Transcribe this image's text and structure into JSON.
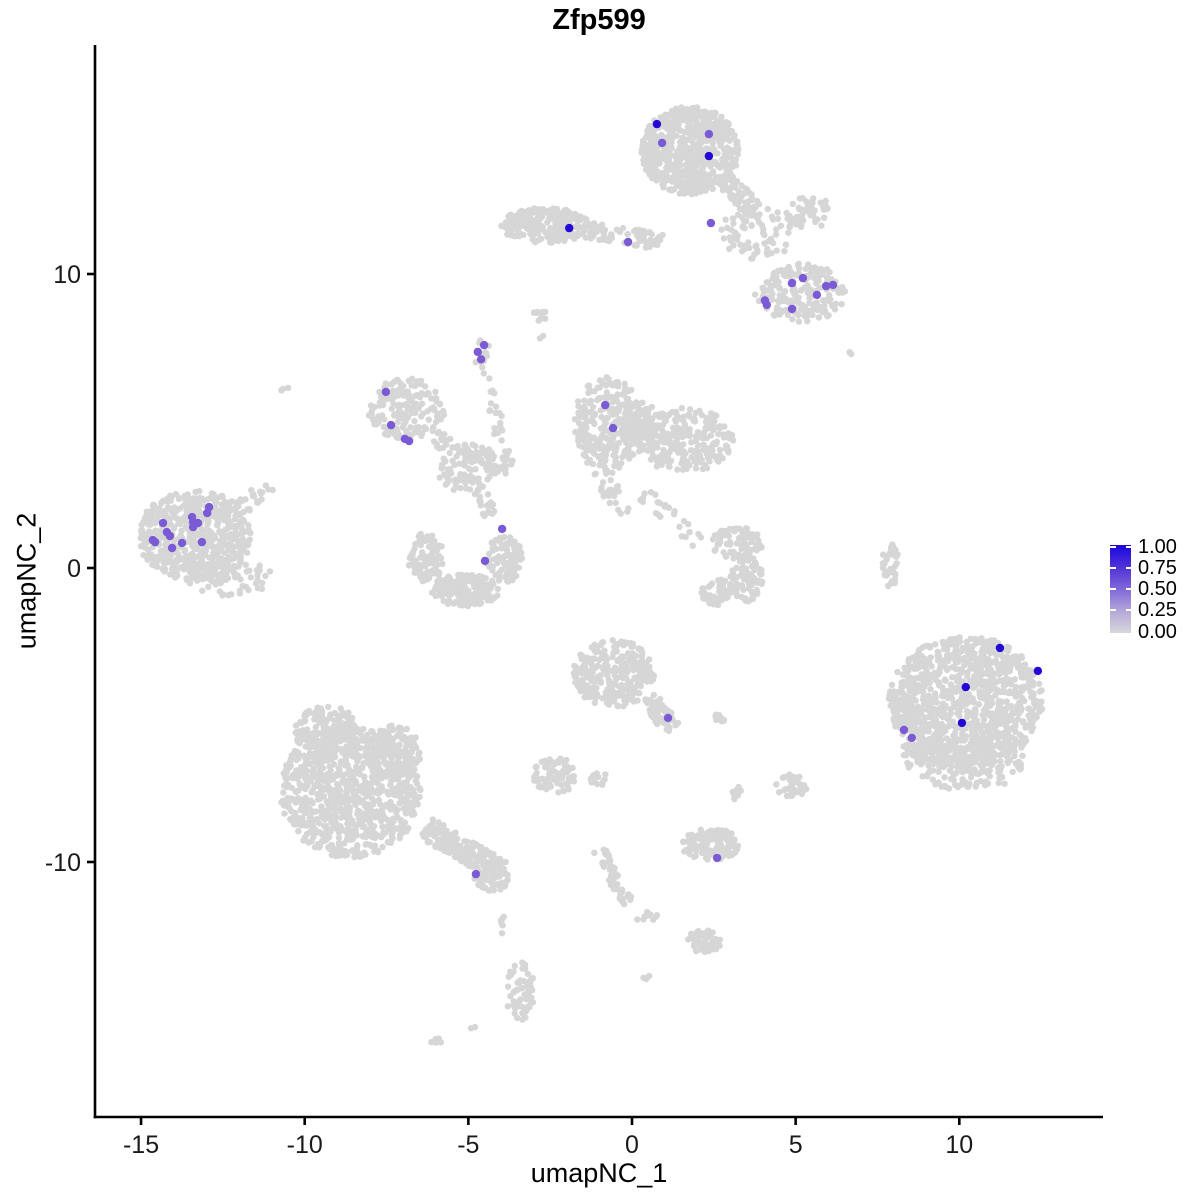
{
  "figure": {
    "title": "Zfp599"
  },
  "chart_data": {
    "type": "scatter",
    "title": "Zfp599",
    "xlabel": "umapNC_1",
    "ylabel": "umapNC_2",
    "xlim": [
      -16.4,
      14.4
    ],
    "ylim": [
      -18.7,
      17.8
    ],
    "x_ticks": [
      "-15",
      "-10",
      "-5",
      "0",
      "5",
      "10"
    ],
    "x_tick_values": [
      -15,
      -10,
      -5,
      0,
      5,
      10
    ],
    "y_ticks": [
      "-10",
      "0",
      "10"
    ],
    "y_tick_values": [
      -10,
      0,
      10
    ],
    "grid": false,
    "legend": {
      "position": "right",
      "breaks": [
        0.0,
        0.25,
        0.5,
        0.75,
        1.0
      ],
      "labels": [
        "0.00",
        "0.25",
        "0.50",
        "0.75",
        "1.00"
      ],
      "color_low": "#d3d3d3",
      "color_high": "#1a06dc"
    },
    "style": {
      "background_point_color": "#d6d6d6",
      "mid_point_color": "#7a5bd5",
      "high_point_color": "#2408d6",
      "axis_color": "#000000",
      "point_radius": 3.2,
      "highlight_radius": 4.2
    },
    "clusters": [
      {
        "name": "top-main",
        "type": "blob",
        "c": [
          1.77,
          14.2
        ],
        "r": [
          1.5,
          1.5
        ],
        "n": 620
      },
      {
        "name": "top-tail",
        "type": "trail",
        "a": [
          2.7,
          13.35
        ],
        "b": [
          3.8,
          12.1
        ],
        "w": 0.3,
        "n": 80
      },
      {
        "name": "top-scatter",
        "type": "blob",
        "c": [
          3.9,
          11.4
        ],
        "r": [
          1.2,
          0.9
        ],
        "n": 80
      },
      {
        "name": "top-arm",
        "type": "blob",
        "c": [
          5.35,
          12.1
        ],
        "r": [
          0.75,
          0.6
        ],
        "n": 50
      },
      {
        "name": "band-dense",
        "type": "blob",
        "c": [
          -2.65,
          11.65
        ],
        "r": [
          1.35,
          0.6
        ],
        "n": 230
      },
      {
        "name": "band-tail",
        "type": "trail",
        "a": [
          -1.4,
          11.5
        ],
        "b": [
          0.9,
          11.1
        ],
        "w": 0.28,
        "n": 70
      },
      {
        "name": "right-mid-top",
        "type": "blob",
        "c": [
          5.15,
          9.35
        ],
        "r": [
          1.4,
          1.0
        ],
        "n": 190
      },
      {
        "name": "ptrail-head",
        "type": "blob",
        "c": [
          -4.58,
          7.3
        ],
        "r": [
          0.25,
          0.5
        ],
        "n": 12
      },
      {
        "name": "ptrail-down",
        "type": "trail",
        "a": [
          -4.5,
          6.8
        ],
        "b": [
          -3.8,
          3.4
        ],
        "w": 0.18,
        "n": 28
      },
      {
        "name": "left-small",
        "type": "blob",
        "c": [
          -6.9,
          5.4
        ],
        "r": [
          1.2,
          1.05
        ],
        "n": 175
      },
      {
        "name": "ls-arm",
        "type": "trail",
        "a": [
          -6.1,
          4.4
        ],
        "b": [
          -3.7,
          3.4
        ],
        "w": 0.3,
        "n": 45
      },
      {
        "name": "central",
        "type": "blob",
        "c": [
          -5.0,
          3.4
        ],
        "r": [
          0.95,
          0.85
        ],
        "n": 100
      },
      {
        "name": "central-tail",
        "type": "trail",
        "a": [
          -4.7,
          2.9
        ],
        "b": [
          -4.35,
          1.8
        ],
        "w": 0.22,
        "n": 22
      },
      {
        "name": "mid-left",
        "type": "blob",
        "c": [
          -0.75,
          4.9
        ],
        "r": [
          1.1,
          1.6
        ],
        "n": 270
      },
      {
        "name": "mid-right",
        "type": "blob",
        "c": [
          1.6,
          4.35
        ],
        "r": [
          1.5,
          1.1
        ],
        "n": 220
      },
      {
        "name": "mid-bridge",
        "type": "blob",
        "c": [
          0.35,
          4.8
        ],
        "r": [
          0.7,
          0.9
        ],
        "n": 70
      },
      {
        "name": "mid-tail1",
        "type": "trail",
        "a": [
          -0.9,
          3.3
        ],
        "b": [
          -0.3,
          1.85
        ],
        "w": 0.3,
        "n": 30
      },
      {
        "name": "mid-tail2",
        "type": "trail",
        "a": [
          0.3,
          2.6
        ],
        "b": [
          2.0,
          0.9
        ],
        "w": 0.25,
        "n": 25
      },
      {
        "name": "left-big",
        "type": "blob",
        "c": [
          -13.35,
          1.1
        ],
        "r": [
          1.75,
          1.55
        ],
        "n": 540
      },
      {
        "name": "lb-arm",
        "type": "trail",
        "a": [
          -12.2,
          1.95
        ],
        "b": [
          -11.0,
          2.75
        ],
        "w": 0.28,
        "n": 28
      },
      {
        "name": "lb-fringe",
        "type": "blob",
        "c": [
          -12.3,
          -0.35
        ],
        "r": [
          1.35,
          0.6
        ],
        "n": 70
      },
      {
        "name": "crescent-a",
        "type": "blob",
        "c": [
          -6.3,
          0.35
        ],
        "r": [
          0.55,
          0.85
        ],
        "n": 90
      },
      {
        "name": "crescent-b",
        "type": "blob",
        "c": [
          -5.1,
          -0.75
        ],
        "r": [
          1.05,
          0.55
        ],
        "n": 165
      },
      {
        "name": "crescent-c",
        "type": "blob",
        "c": [
          -3.9,
          0.3
        ],
        "r": [
          0.55,
          0.8
        ],
        "n": 90
      },
      {
        "name": "rm-crescent-a",
        "type": "blob",
        "c": [
          3.2,
          0.85
        ],
        "r": [
          0.8,
          0.55
        ],
        "n": 80
      },
      {
        "name": "rm-crescent-b",
        "type": "blob",
        "c": [
          3.5,
          -0.35
        ],
        "r": [
          0.5,
          0.8
        ],
        "n": 80
      },
      {
        "name": "rm-crescent-c",
        "type": "blob",
        "c": [
          2.6,
          -0.8
        ],
        "r": [
          0.5,
          0.5
        ],
        "n": 55
      },
      {
        "name": "thin-strip",
        "type": "blob",
        "c": [
          7.9,
          0.15
        ],
        "r": [
          0.25,
          0.8
        ],
        "n": 35
      },
      {
        "name": "right-big",
        "type": "blob",
        "c": [
          10.2,
          -4.55
        ],
        "r": [
          2.35,
          2.25
        ],
        "n": 950
      },
      {
        "name": "rb-arm",
        "type": "trail",
        "a": [
          8.25,
          -4.3
        ],
        "b": [
          8.85,
          -6.7
        ],
        "w": 0.45,
        "n": 100
      },
      {
        "name": "rb-bottom",
        "type": "blob",
        "c": [
          10.3,
          -6.6
        ],
        "r": [
          1.7,
          1.0
        ],
        "n": 170
      },
      {
        "name": "cb-main",
        "type": "blob",
        "c": [
          -0.55,
          -3.6
        ],
        "r": [
          1.25,
          1.15
        ],
        "n": 280
      },
      {
        "name": "cb-arm",
        "type": "trail",
        "a": [
          0.45,
          -4.4
        ],
        "b": [
          1.25,
          -5.5
        ],
        "w": 0.3,
        "n": 60
      },
      {
        "name": "small-1",
        "type": "blob",
        "c": [
          -2.35,
          -7.05
        ],
        "r": [
          0.7,
          0.6
        ],
        "n": 75
      },
      {
        "name": "small-2",
        "type": "blob",
        "c": [
          -1.0,
          -7.2
        ],
        "r": [
          0.27,
          0.27
        ],
        "n": 14
      },
      {
        "name": "small-3",
        "type": "blob",
        "c": [
          2.8,
          -5.1
        ],
        "r": [
          0.3,
          0.18
        ],
        "n": 10
      },
      {
        "name": "small-4",
        "type": "blob",
        "c": [
          3.2,
          -7.7
        ],
        "r": [
          0.2,
          0.28
        ],
        "n": 10
      },
      {
        "name": "small-5",
        "type": "blob",
        "c": [
          4.9,
          -7.4
        ],
        "r": [
          0.5,
          0.4
        ],
        "n": 32
      },
      {
        "name": "bottom-small",
        "type": "blob",
        "c": [
          2.4,
          -9.4
        ],
        "r": [
          0.9,
          0.55
        ],
        "n": 140
      },
      {
        "name": "bl-main",
        "type": "blob",
        "c": [
          -8.6,
          -7.6
        ],
        "r": [
          2.15,
          2.25
        ],
        "n": 850
      },
      {
        "name": "bl-top",
        "type": "blob",
        "c": [
          -9.3,
          -5.55
        ],
        "r": [
          1.05,
          0.85
        ],
        "n": 170
      },
      {
        "name": "bl-right",
        "type": "blob",
        "c": [
          -7.3,
          -6.3
        ],
        "r": [
          0.85,
          0.95
        ],
        "n": 130
      },
      {
        "name": "bl-tail",
        "type": "trail",
        "a": [
          -6.3,
          -8.85
        ],
        "b": [
          -3.95,
          -10.35
        ],
        "w": 0.38,
        "n": 190
      },
      {
        "name": "bl-tailend",
        "type": "blob",
        "c": [
          -4.3,
          -10.6
        ],
        "r": [
          0.55,
          0.4
        ],
        "n": 45
      },
      {
        "name": "bt-trail",
        "type": "trail",
        "a": [
          -1.0,
          -9.6
        ],
        "b": [
          -0.1,
          -11.5
        ],
        "w": 0.2,
        "n": 45
      },
      {
        "name": "bt-bits",
        "type": "blob",
        "c": [
          0.4,
          -11.85
        ],
        "r": [
          0.4,
          0.15
        ],
        "n": 10
      },
      {
        "name": "bt-blob",
        "type": "blob",
        "c": [
          2.2,
          -12.7
        ],
        "r": [
          0.55,
          0.42
        ],
        "n": 55
      },
      {
        "name": "v-blob",
        "type": "blob",
        "c": [
          -3.42,
          -14.4
        ],
        "r": [
          0.45,
          1.0
        ],
        "n": 60
      },
      {
        "name": "tiny-1",
        "type": "blob",
        "c": [
          -3.91,
          -12.2
        ],
        "r": [
          0.15,
          0.35
        ],
        "n": 6
      },
      {
        "name": "dot-1",
        "type": "blob",
        "c": [
          -4.86,
          -15.65
        ],
        "r": [
          0.1,
          0.1
        ],
        "n": 2
      },
      {
        "name": "dot-2",
        "type": "blob",
        "c": [
          0.46,
          -13.95
        ],
        "r": [
          0.12,
          0.12
        ],
        "n": 3
      },
      {
        "name": "dot-3",
        "type": "blob",
        "c": [
          -6.02,
          -16.1
        ],
        "r": [
          0.2,
          0.12
        ],
        "n": 5
      },
      {
        "name": "iso-1",
        "type": "blob",
        "c": [
          -10.6,
          6.05
        ],
        "r": [
          0.18,
          0.12
        ],
        "n": 3
      },
      {
        "name": "iso-2",
        "type": "blob",
        "c": [
          -2.85,
          8.6
        ],
        "r": [
          0.3,
          0.2
        ],
        "n": 10
      },
      {
        "name": "iso-3",
        "type": "blob",
        "c": [
          -2.8,
          7.9
        ],
        "r": [
          0.1,
          0.1
        ],
        "n": 2
      },
      {
        "name": "iso-4",
        "type": "blob",
        "c": [
          6.7,
          7.25
        ],
        "r": [
          0.12,
          0.12
        ],
        "n": 2
      }
    ],
    "highlights": [
      {
        "group": "expression-high",
        "value": 1.0,
        "color": "#2408d6",
        "points": [
          [
            0.76,
            15.1
          ],
          [
            2.35,
            14.01
          ],
          [
            -1.92,
            11.56
          ],
          [
            11.24,
            -2.72
          ],
          [
            12.4,
            -3.5
          ],
          [
            10.2,
            -4.05
          ],
          [
            10.08,
            -5.27
          ]
        ]
      },
      {
        "group": "expression-mid",
        "value": 0.5,
        "color": "#7a5bd5",
        "points": [
          [
            2.35,
            14.76
          ],
          [
            0.92,
            14.46
          ],
          [
            -0.12,
            11.09
          ],
          [
            2.41,
            11.73
          ],
          [
            4.89,
            9.69
          ],
          [
            5.22,
            9.86
          ],
          [
            5.93,
            9.59
          ],
          [
            6.14,
            9.63
          ],
          [
            5.65,
            9.29
          ],
          [
            4.06,
            9.1
          ],
          [
            4.12,
            8.95
          ],
          [
            4.89,
            8.81
          ],
          [
            -4.71,
            7.35
          ],
          [
            -4.52,
            7.58
          ],
          [
            -4.61,
            7.1
          ],
          [
            -7.52,
            5.99
          ],
          [
            -7.36,
            4.86
          ],
          [
            -6.94,
            4.39
          ],
          [
            -6.81,
            4.32
          ],
          [
            -0.82,
            5.54
          ],
          [
            -0.58,
            4.76
          ],
          [
            -3.97,
            1.33
          ],
          [
            -4.49,
            0.24
          ],
          [
            -14.33,
            1.53
          ],
          [
            -12.92,
            2.07
          ],
          [
            -12.98,
            1.87
          ],
          [
            -13.44,
            1.73
          ],
          [
            -13.41,
            1.56
          ],
          [
            -13.26,
            1.53
          ],
          [
            -13.41,
            1.39
          ],
          [
            -14.21,
            1.22
          ],
          [
            -14.12,
            1.09
          ],
          [
            -14.64,
            0.95
          ],
          [
            -14.57,
            0.88
          ],
          [
            -13.14,
            0.88
          ],
          [
            -13.75,
            0.85
          ],
          [
            -14.05,
            0.68
          ],
          [
            8.31,
            -5.51
          ],
          [
            8.55,
            -5.78
          ],
          [
            1.1,
            -5.1
          ],
          [
            2.6,
            -9.86
          ],
          [
            -4.77,
            -10.41
          ]
        ]
      }
    ]
  }
}
